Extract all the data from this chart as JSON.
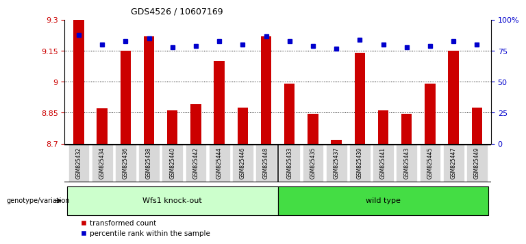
{
  "title": "GDS4526 / 10607169",
  "categories": [
    "GSM825432",
    "GSM825434",
    "GSM825436",
    "GSM825438",
    "GSM825440",
    "GSM825442",
    "GSM825444",
    "GSM825446",
    "GSM825448",
    "GSM825433",
    "GSM825435",
    "GSM825437",
    "GSM825439",
    "GSM825441",
    "GSM825443",
    "GSM825445",
    "GSM825447",
    "GSM825449"
  ],
  "red_values": [
    9.3,
    8.87,
    9.15,
    9.22,
    8.86,
    8.89,
    9.1,
    8.875,
    9.22,
    8.99,
    8.845,
    8.72,
    9.14,
    8.86,
    8.845,
    8.99,
    9.15,
    8.875
  ],
  "blue_values": [
    88,
    80,
    83,
    85,
    78,
    79,
    83,
    80,
    87,
    83,
    79,
    77,
    84,
    80,
    78,
    79,
    83,
    80
  ],
  "group1_label": "Wfs1 knock-out",
  "group2_label": "wild type",
  "group1_count": 9,
  "group2_count": 9,
  "ymin": 8.7,
  "ymax": 9.3,
  "yticks": [
    8.7,
    8.85,
    9.0,
    9.15,
    9.3
  ],
  "ytick_labels": [
    "8.7",
    "8.85",
    "9",
    "9.15",
    "9.3"
  ],
  "y2ticks": [
    0,
    25,
    50,
    75,
    100
  ],
  "y2labels": [
    "0",
    "25",
    "50",
    "75",
    "100%"
  ],
  "bar_color": "#cc0000",
  "dot_color": "#0000cc",
  "group1_bg": "#ccffcc",
  "group2_bg": "#44dd44",
  "label_bg": "#d8d8d8",
  "legend_red": "transformed count",
  "legend_blue": "percentile rank within the sample"
}
